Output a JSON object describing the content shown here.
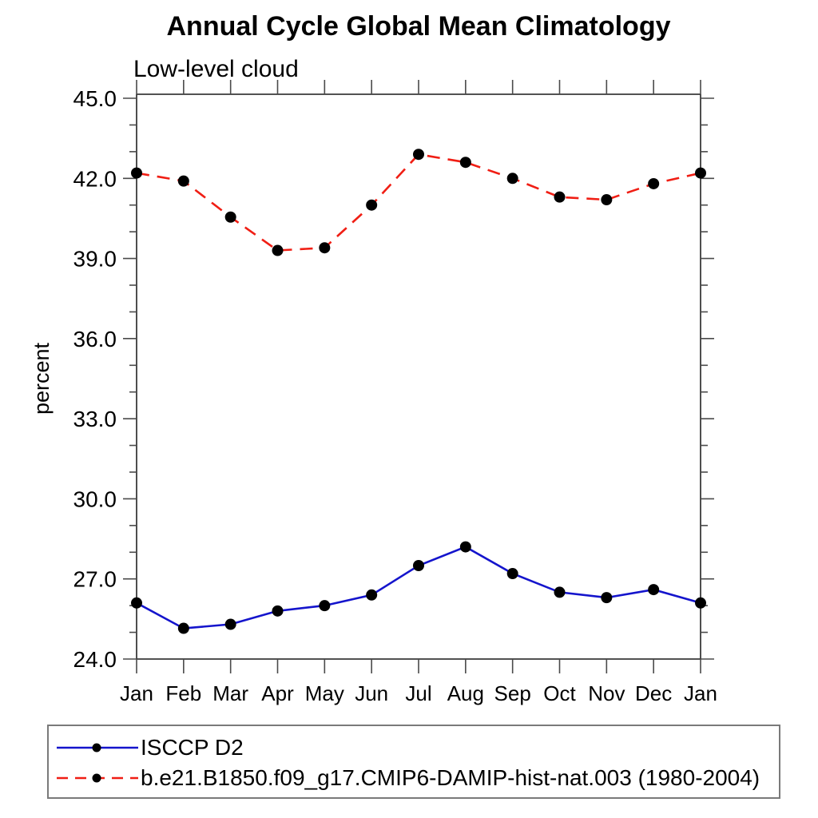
{
  "chart_data": {
    "type": "line",
    "title": "Annual Cycle Global Mean Climatology",
    "subtitle": "Low-level cloud",
    "xlabel": "",
    "ylabel": "percent",
    "categories": [
      "Jan",
      "Feb",
      "Mar",
      "Apr",
      "May",
      "Jun",
      "Jul",
      "Aug",
      "Sep",
      "Oct",
      "Nov",
      "Dec",
      "Jan"
    ],
    "ylim": [
      24.0,
      45.0
    ],
    "ytick_labels": [
      "24.0",
      "27.0",
      "30.0",
      "33.0",
      "36.0",
      "39.0",
      "42.0",
      "45.0"
    ],
    "ytick_major_step": 3.0,
    "ytick_minor_step": 1.0,
    "grid": false,
    "legend_position": "bottom-left-box",
    "series": [
      {
        "name": "ISCCP D2",
        "color": "#1414cc",
        "line_style": "solid",
        "marker": "filled-circle",
        "marker_color": "#000000",
        "values": [
          26.1,
          25.15,
          25.3,
          25.8,
          26.0,
          26.4,
          27.5,
          28.2,
          27.2,
          26.5,
          26.3,
          26.6,
          26.1
        ]
      },
      {
        "name": "b.e21.B1850.f09_g17.CMIP6-DAMIP-hist-nat.003 (1980-2004)",
        "color": "#f01e14",
        "line_style": "dashed",
        "marker": "filled-circle",
        "marker_color": "#000000",
        "values": [
          42.2,
          41.9,
          40.55,
          39.3,
          39.4,
          41.0,
          42.9,
          42.6,
          42.0,
          41.3,
          41.2,
          41.8,
          42.2
        ]
      }
    ]
  },
  "colors": {
    "axis": "#3a3a3a",
    "tick": "#4a4a4a",
    "text": "#000000",
    "background": "#ffffff",
    "legend_border": "#7a7a7a"
  }
}
